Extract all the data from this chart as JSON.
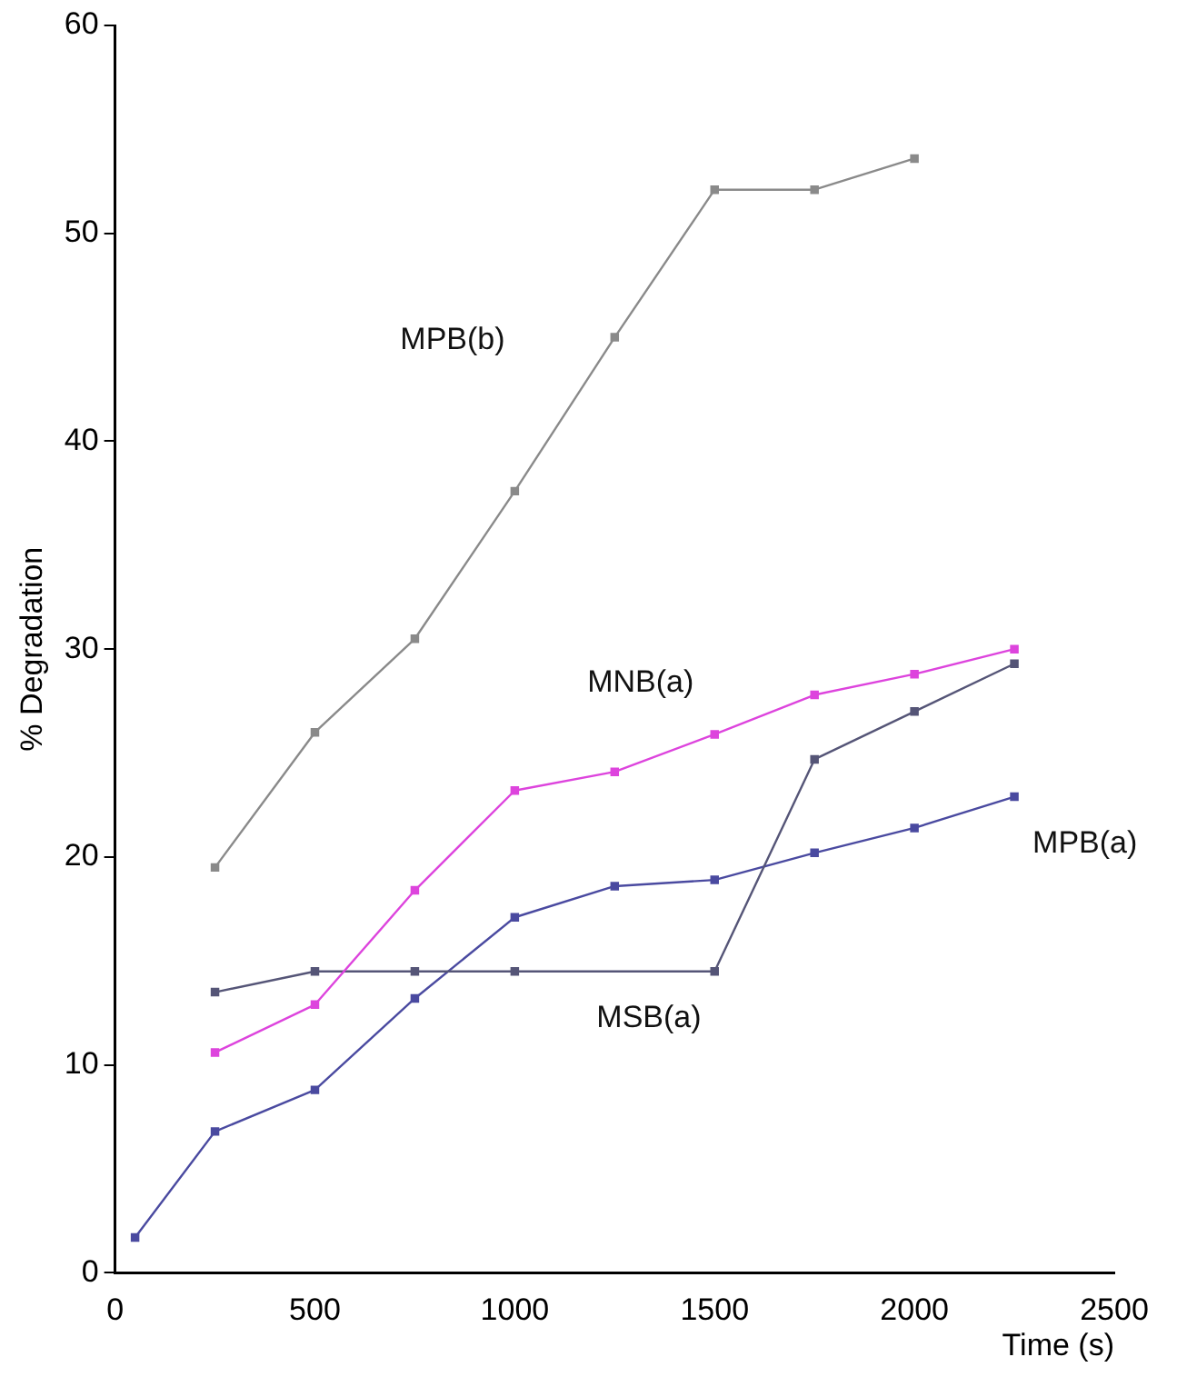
{
  "chart_data": {
    "type": "line",
    "xlabel": "Time (s)",
    "ylabel": "% Degradation",
    "xlim": [
      0,
      2500
    ],
    "xticks": [
      0,
      500,
      1000,
      1500,
      2000,
      2500
    ],
    "ylim": [
      0,
      60
    ],
    "yticks": [
      0,
      10,
      20,
      30,
      40,
      50,
      60
    ],
    "grid": false,
    "legend": false,
    "marker": "square",
    "line_style": "solid",
    "series": [
      {
        "name": "MPB(b)",
        "color": "#8a8a8a",
        "x": [
          250,
          500,
          750,
          1000,
          1250,
          1500,
          1750,
          2000
        ],
        "values": [
          19.5,
          26.0,
          30.5,
          37.6,
          45.0,
          52.1,
          52.1,
          53.6
        ]
      },
      {
        "name": "MNB(a)",
        "color": "#dd44dd",
        "x": [
          250,
          500,
          750,
          1000,
          1250,
          1500,
          1750,
          2000,
          2250
        ],
        "values": [
          10.6,
          12.9,
          18.4,
          23.2,
          24.1,
          25.9,
          27.8,
          28.8,
          30.0
        ]
      },
      {
        "name": "MSB(a)",
        "color": "#555577",
        "x": [
          250,
          500,
          750,
          1000,
          1500,
          1750,
          2000,
          2250
        ],
        "values": [
          13.5,
          14.5,
          14.5,
          14.5,
          14.5,
          24.7,
          27.0,
          29.3
        ]
      },
      {
        "name": "MPB(a)",
        "color": "#4a4aa0",
        "x": [
          50,
          250,
          500,
          750,
          1000,
          1250,
          1500,
          1750,
          2000,
          2250
        ],
        "values": [
          1.7,
          6.8,
          8.8,
          13.2,
          17.1,
          18.6,
          18.9,
          20.2,
          21.4,
          22.9
        ]
      }
    ]
  }
}
